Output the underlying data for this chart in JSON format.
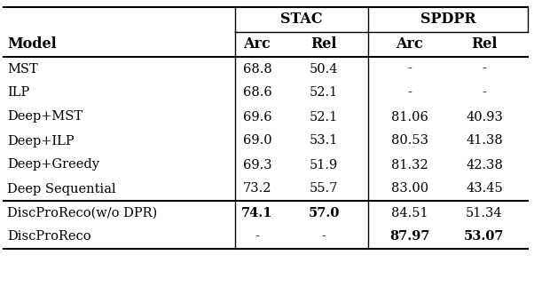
{
  "rows": [
    {
      "model": "MST",
      "stac_arc": "68.8",
      "stac_rel": "50.4",
      "spdpr_arc": "-",
      "spdpr_rel": "-",
      "bold_stac": false,
      "bold_spdpr": false
    },
    {
      "model": "ILP",
      "stac_arc": "68.6",
      "stac_rel": "52.1",
      "spdpr_arc": "-",
      "spdpr_rel": "-",
      "bold_stac": false,
      "bold_spdpr": false
    },
    {
      "model": "Deep+MST",
      "stac_arc": "69.6",
      "stac_rel": "52.1",
      "spdpr_arc": "81.06",
      "spdpr_rel": "40.93",
      "bold_stac": false,
      "bold_spdpr": false
    },
    {
      "model": "Deep+ILP",
      "stac_arc": "69.0",
      "stac_rel": "53.1",
      "spdpr_arc": "80.53",
      "spdpr_rel": "41.38",
      "bold_stac": false,
      "bold_spdpr": false
    },
    {
      "model": "Deep+Greedy",
      "stac_arc": "69.3",
      "stac_rel": "51.9",
      "spdpr_arc": "81.32",
      "spdpr_rel": "42.38",
      "bold_stac": false,
      "bold_spdpr": false
    },
    {
      "model": "Deep Sequential",
      "stac_arc": "73.2",
      "stac_rel": "55.7",
      "spdpr_arc": "83.00",
      "spdpr_rel": "43.45",
      "bold_stac": false,
      "bold_spdpr": false
    },
    {
      "model": "DiscProReco(w/o DPR)",
      "stac_arc": "74.1",
      "stac_rel": "57.0",
      "spdpr_arc": "84.51",
      "spdpr_rel": "51.34",
      "bold_stac": true,
      "bold_spdpr": false
    },
    {
      "model": "DiscProReco",
      "stac_arc": "-",
      "stac_rel": "-",
      "spdpr_arc": "87.97",
      "spdpr_rel": "53.07",
      "bold_stac": false,
      "bold_spdpr": true
    }
  ],
  "stac_label": "STAC",
  "spdpr_label": "SPDPR",
  "col_headers": [
    "Model",
    "Arc",
    "Rel",
    "Arc",
    "Rel"
  ],
  "thick_line_after_row": 5,
  "bg_color": "#ffffff",
  "font_size": 10.5,
  "header_font_size": 11.5
}
